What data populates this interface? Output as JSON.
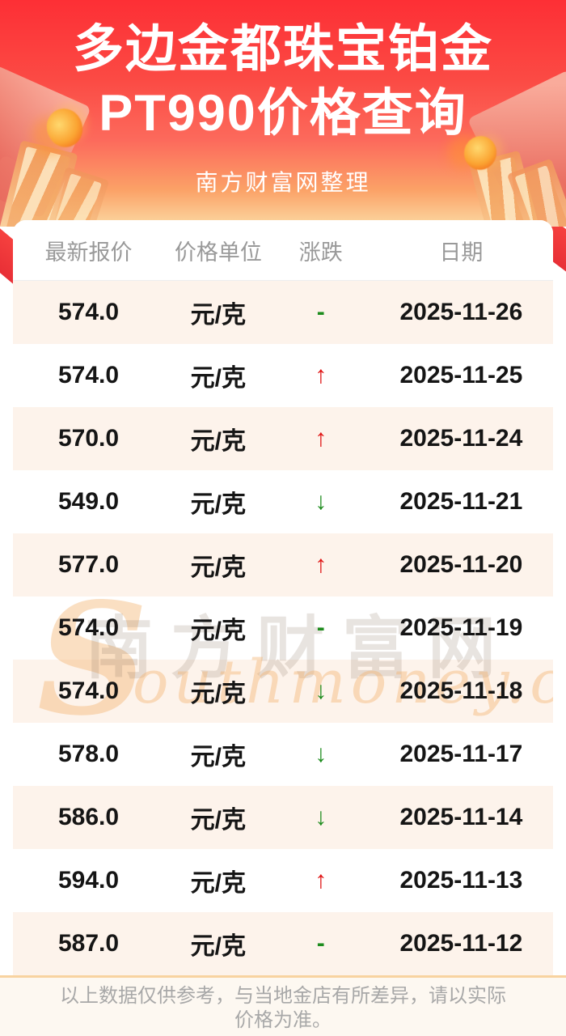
{
  "header": {
    "title_line1": "多边金都珠宝铂金",
    "title_line2": "PT990价格查询",
    "subtitle": "南方财富网整理"
  },
  "table": {
    "columns": [
      "最新报价",
      "价格单位",
      "涨跌",
      "日期"
    ],
    "change_symbols": {
      "up": "↑",
      "down": "↓",
      "flat": "-"
    },
    "rows": [
      {
        "price": "574.0",
        "unit": "元/克",
        "change": "flat",
        "date": "2025-11-26"
      },
      {
        "price": "574.0",
        "unit": "元/克",
        "change": "up",
        "date": "2025-11-25"
      },
      {
        "price": "570.0",
        "unit": "元/克",
        "change": "up",
        "date": "2025-11-24"
      },
      {
        "price": "549.0",
        "unit": "元/克",
        "change": "down",
        "date": "2025-11-21"
      },
      {
        "price": "577.0",
        "unit": "元/克",
        "change": "up",
        "date": "2025-11-20"
      },
      {
        "price": "574.0",
        "unit": "元/克",
        "change": "flat",
        "date": "2025-11-19"
      },
      {
        "price": "574.0",
        "unit": "元/克",
        "change": "down",
        "date": "2025-11-18"
      },
      {
        "price": "578.0",
        "unit": "元/克",
        "change": "down",
        "date": "2025-11-17"
      },
      {
        "price": "586.0",
        "unit": "元/克",
        "change": "down",
        "date": "2025-11-14"
      },
      {
        "price": "594.0",
        "unit": "元/克",
        "change": "up",
        "date": "2025-11-13"
      },
      {
        "price": "587.0",
        "unit": "元/克",
        "change": "flat",
        "date": "2025-11-12"
      }
    ]
  },
  "watermark": {
    "initial": "S",
    "cn": "南方财富网",
    "en": "outhmoney.com"
  },
  "footer": {
    "disclaimer": "以上数据仅供参考，与当地金店有所差异，请以实际价格为准。"
  },
  "colors": {
    "hero_red_top": "#fd2f35",
    "hero_cream_bottom": "#fbd9a3",
    "row_alt_bg": "#fdf3eb",
    "up_red": "#e01212",
    "down_green": "#1d8c1d",
    "footer_border": "#f8d3a0",
    "footer_bg": "#fdf8f1"
  }
}
